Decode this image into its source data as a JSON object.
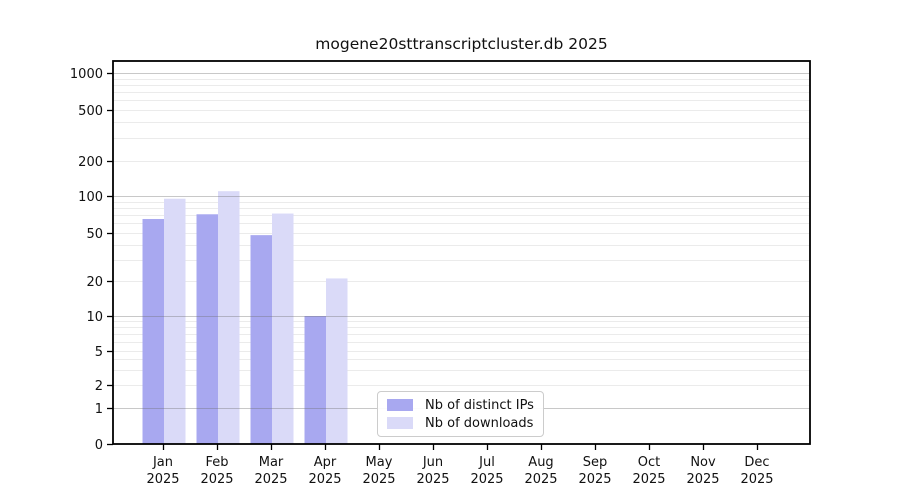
{
  "figure": {
    "title": "mogene20sttranscriptcluster.db 2025"
  },
  "axes": {
    "x": {
      "months": [
        "Jan",
        "Feb",
        "Mar",
        "Apr",
        "May",
        "Jun",
        "Jul",
        "Aug",
        "Sep",
        "Oct",
        "Nov",
        "Dec"
      ],
      "year": "2025"
    },
    "y": {
      "tick_labels": [
        "0",
        "1",
        "2",
        "5",
        "10",
        "20",
        "50",
        "100",
        "200",
        "500",
        "1000"
      ]
    }
  },
  "legend": {
    "items": [
      {
        "label": "Nb of distinct IPs",
        "color": "#a8a8f0"
      },
      {
        "label": "Nb of downloads",
        "color": "#dadaf8"
      }
    ]
  },
  "chart_data": {
    "type": "bar",
    "title": "mogene20sttranscriptcluster.db 2025",
    "categories": [
      "Jan 2025",
      "Feb 2025",
      "Mar 2025",
      "Apr 2025",
      "May 2025",
      "Jun 2025",
      "Jul 2025",
      "Aug 2025",
      "Sep 2025",
      "Oct 2025",
      "Nov 2025",
      "Dec 2025"
    ],
    "series": [
      {
        "name": "Nb of distinct IPs",
        "color": "#a8a8f0",
        "values": [
          65,
          71,
          48,
          10,
          0,
          0,
          0,
          0,
          0,
          0,
          0,
          0
        ]
      },
      {
        "name": "Nb of downloads",
        "color": "#dadaf8",
        "values": [
          95,
          110,
          72,
          21,
          0,
          0,
          0,
          0,
          0,
          0,
          0,
          0
        ]
      }
    ],
    "xlabel": "",
    "ylabel": "",
    "yscale": "symlog",
    "yticks": [
      0,
      1,
      2,
      5,
      10,
      20,
      50,
      100,
      200,
      500,
      1000
    ],
    "ylim": [
      0,
      1250
    ],
    "grid": true,
    "grid_major_color": "#c7c7c7",
    "grid_minor_color": "#ebebeb",
    "legend_position": "lower center"
  }
}
